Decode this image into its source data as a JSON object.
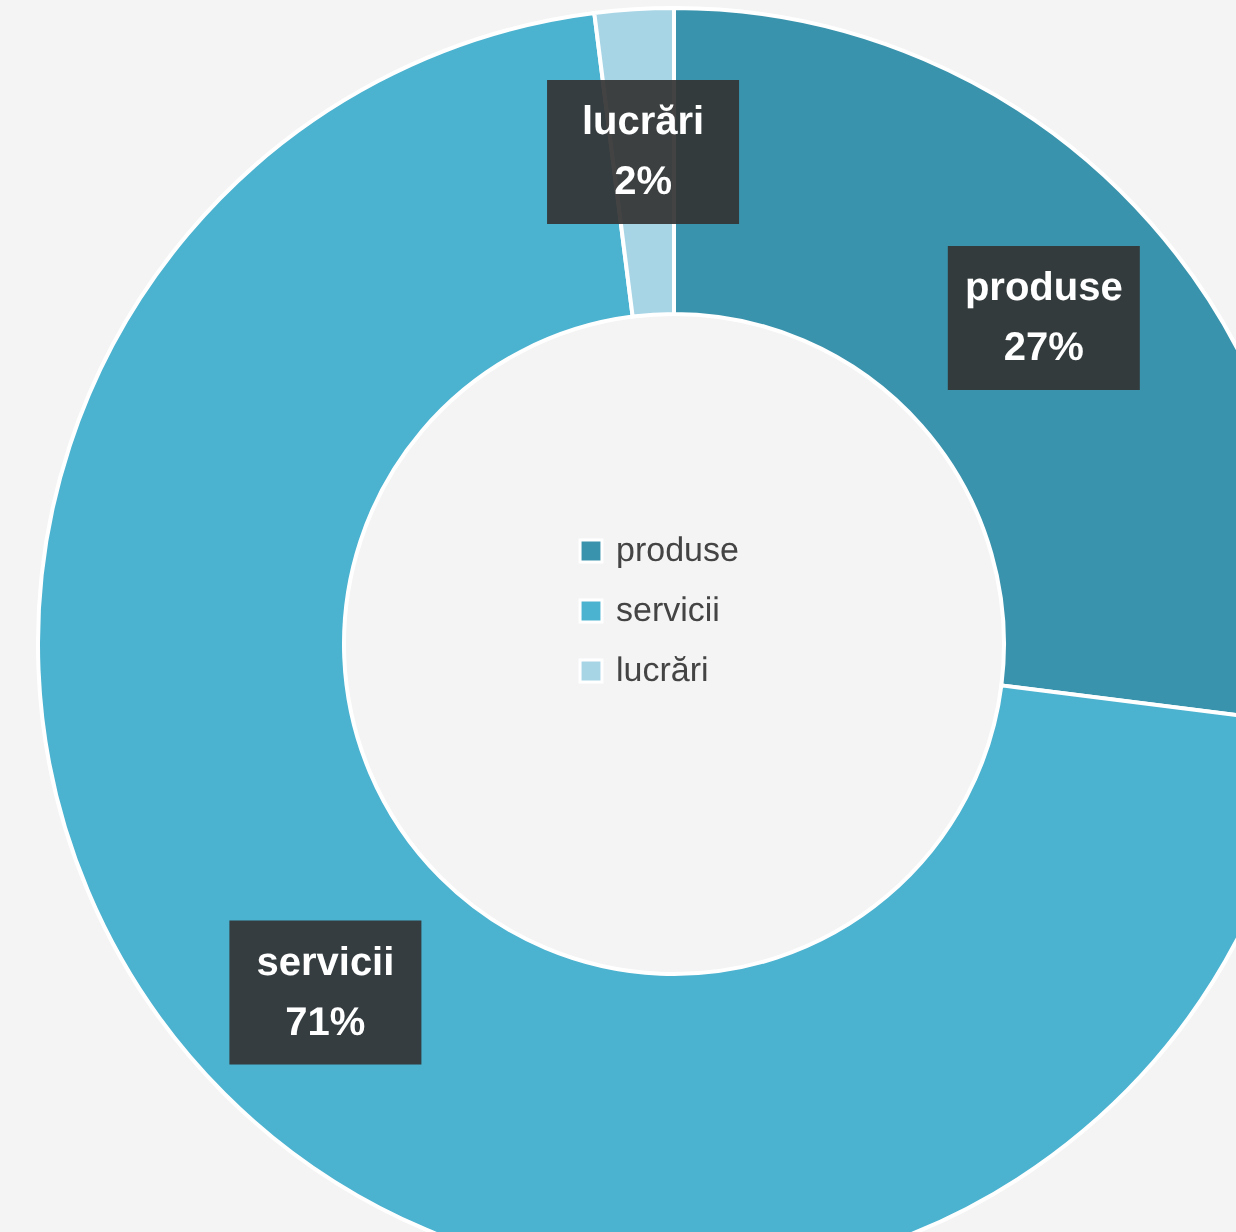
{
  "chart_data": {
    "type": "donut",
    "categories": [
      "produse",
      "servicii",
      "lucrări"
    ],
    "values": [
      27,
      71,
      2
    ],
    "value_labels": [
      "27%",
      "71%",
      "2%"
    ],
    "colors": [
      "#3a93ad",
      "#4bb2d0",
      "#a7d5e6"
    ],
    "legend": "center"
  }
}
